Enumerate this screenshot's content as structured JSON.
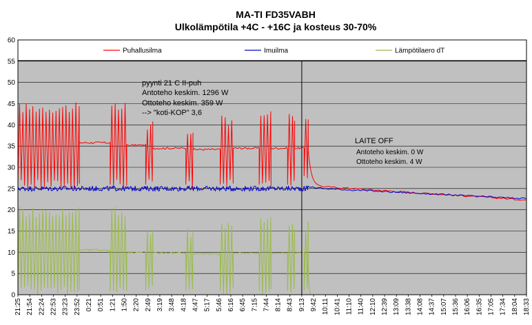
{
  "chart_data": {
    "type": "line",
    "title": "MA-TI FD35VABH",
    "subtitle": "Ulkolämpötila +4C - +16C ja kosteus 30-70%",
    "xlabel": "",
    "ylabel": "",
    "ylim": [
      0,
      60
    ],
    "yticks": [
      0,
      5,
      10,
      15,
      20,
      25,
      30,
      35,
      40,
      45,
      50,
      55,
      60
    ],
    "grid": true,
    "legend_position": "top",
    "categories": [
      "21:25",
      "21:54",
      "22:24",
      "22:53",
      "23:23",
      "23:52",
      "0:21",
      "0:51",
      "1:21",
      "1:50",
      "2:20",
      "2:49",
      "3:19",
      "3:48",
      "4:18",
      "4:47",
      "5:17",
      "5:46",
      "6:16",
      "6:45",
      "7:15",
      "7:44",
      "8:14",
      "8:43",
      "9:13",
      "9:42",
      "10:11",
      "10:41",
      "11:10",
      "11:40",
      "12:10",
      "12:39",
      "13:09",
      "13:38",
      "14:08",
      "14:37",
      "15:07",
      "15:36",
      "16:06",
      "16:35",
      "17:05",
      "17:34",
      "18:04",
      "18:33"
    ],
    "cursor_at": "9:13",
    "series": [
      {
        "name": "Puhallusilma",
        "color": "#ff0000",
        "pattern": [
          {
            "from": 0,
            "to": 5.2,
            "kind": "osc",
            "low": 26,
            "high": 44,
            "period": 0.28
          },
          {
            "from": 5.2,
            "to": 7.8,
            "kind": "flat",
            "y": 35.8
          },
          {
            "from": 7.8,
            "to": 9.2,
            "kind": "osc",
            "low": 26,
            "high": 44,
            "period": 0.28
          },
          {
            "from": 9.2,
            "to": 10.8,
            "kind": "flat",
            "y": 35.2
          },
          {
            "from": 10.8,
            "to": 11.4,
            "kind": "osc",
            "low": 26,
            "high": 40,
            "period": 0.28
          },
          {
            "from": 11.4,
            "to": 14.2,
            "kind": "flat",
            "y": 34.5
          },
          {
            "from": 14.2,
            "to": 14.8,
            "kind": "osc",
            "low": 26,
            "high": 39,
            "period": 0.28
          },
          {
            "from": 14.8,
            "to": 17.1,
            "kind": "flat",
            "y": 34.2
          },
          {
            "from": 17.1,
            "to": 18.2,
            "kind": "osc",
            "low": 26,
            "high": 41,
            "period": 0.28
          },
          {
            "from": 18.2,
            "to": 20.4,
            "kind": "flat",
            "y": 34.5
          },
          {
            "from": 20.4,
            "to": 21.4,
            "kind": "osc",
            "low": 26,
            "high": 43,
            "period": 0.28
          },
          {
            "from": 21.4,
            "to": 22.8,
            "kind": "flat",
            "y": 34.5
          },
          {
            "from": 22.8,
            "to": 23.4,
            "kind": "osc",
            "low": 26,
            "high": 42,
            "period": 0.28
          },
          {
            "from": 23.4,
            "to": 24.2,
            "kind": "flat",
            "y": 34.5
          },
          {
            "from": 24.2,
            "to": 24.55,
            "kind": "osc",
            "low": 28,
            "high": 42,
            "period": 0.28
          },
          {
            "from": 24.55,
            "to": 25.6,
            "kind": "decay",
            "y0": 34,
            "y1": 25.5
          },
          {
            "from": 25.6,
            "to": 43,
            "kind": "ramp",
            "y0": 25.5,
            "y1": 22.3
          }
        ]
      },
      {
        "name": "Imuilma",
        "color": "#0000cc",
        "pattern": [
          {
            "from": 0,
            "to": 24.5,
            "kind": "noise",
            "y": 25.0,
            "amp": 0.6
          },
          {
            "from": 24.5,
            "to": 25.8,
            "kind": "ramp",
            "y0": 25.5,
            "y1": 25.0
          },
          {
            "from": 25.8,
            "to": 43,
            "kind": "ramp",
            "y0": 25.0,
            "y1": 22.6
          }
        ]
      },
      {
        "name": "Lämpötilaero dT",
        "color": "#99bb44",
        "pattern": [
          {
            "from": 0,
            "to": 5.2,
            "kind": "osc",
            "low": 1,
            "high": 19.5,
            "period": 0.28
          },
          {
            "from": 5.2,
            "to": 7.8,
            "kind": "flat",
            "y": 10.5
          },
          {
            "from": 7.8,
            "to": 9.2,
            "kind": "osc",
            "low": 1,
            "high": 19.5,
            "period": 0.28
          },
          {
            "from": 9.2,
            "to": 10.8,
            "kind": "flat",
            "y": 10.0
          },
          {
            "from": 10.8,
            "to": 11.4,
            "kind": "osc",
            "low": 1,
            "high": 15,
            "period": 0.28
          },
          {
            "from": 11.4,
            "to": 14.2,
            "kind": "flat",
            "y": 9.8
          },
          {
            "from": 14.2,
            "to": 14.8,
            "kind": "osc",
            "low": 1,
            "high": 14.5,
            "period": 0.28
          },
          {
            "from": 14.8,
            "to": 17.1,
            "kind": "flat",
            "y": 9.6
          },
          {
            "from": 17.1,
            "to": 18.2,
            "kind": "osc",
            "low": 1,
            "high": 16,
            "period": 0.28
          },
          {
            "from": 18.2,
            "to": 20.4,
            "kind": "flat",
            "y": 9.8
          },
          {
            "from": 20.4,
            "to": 21.4,
            "kind": "osc",
            "low": 1,
            "high": 17,
            "period": 0.28
          },
          {
            "from": 21.4,
            "to": 22.8,
            "kind": "flat",
            "y": 9.8
          },
          {
            "from": 22.8,
            "to": 23.4,
            "kind": "osc",
            "low": 1,
            "high": 16,
            "period": 0.28
          },
          {
            "from": 23.4,
            "to": 24.2,
            "kind": "flat",
            "y": 9.8
          },
          {
            "from": 24.2,
            "to": 24.55,
            "kind": "osc",
            "low": 1,
            "high": 16,
            "period": 0.28
          },
          {
            "from": 24.55,
            "to": 24.75,
            "kind": "decay",
            "y0": 8,
            "y1": 0
          }
        ]
      }
    ],
    "annotations": {
      "left": [
        "pyynti 21 C II-puh",
        "Antoteho keskim. 1296 W",
        "Ottoteho keskim. 359 W",
        "--> \"koti-KOP\" 3,6"
      ],
      "right_title": "LAITE OFF",
      "right": [
        "Antoteho keskim. 0 W",
        "Ottoteho keskim. 4 W"
      ]
    },
    "colors": {
      "plot_background": "#c0c0c0",
      "legend_background": "#ffffff",
      "grid": "#000000"
    }
  }
}
